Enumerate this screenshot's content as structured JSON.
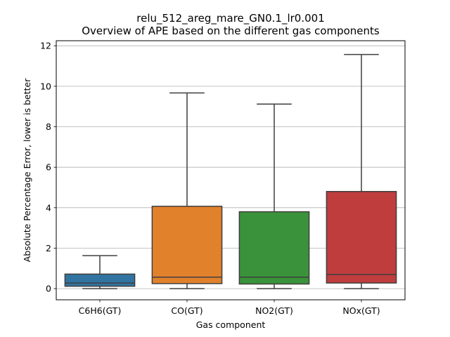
{
  "chart_data": {
    "type": "box",
    "title": "relu_512_areg_mare_GN0.1_lr0.001",
    "subtitle": "Overview of APE based on the different gas components",
    "xlabel": "Gas component",
    "ylabel": "Absolute Percentage Error, lower is better",
    "ylim": [
      -0.55,
      12.25
    ],
    "yticks": [
      0,
      2,
      4,
      6,
      8,
      10,
      12
    ],
    "grid": "y",
    "categories": [
      "C6H6(GT)",
      "CO(GT)",
      "NO2(GT)",
      "NOx(GT)"
    ],
    "boxes": [
      {
        "category": "C6H6(GT)",
        "whisker_low": 0.0,
        "q1": 0.12,
        "median": 0.28,
        "q3": 0.72,
        "whisker_high": 1.63,
        "color": "#3274a1"
      },
      {
        "category": "CO(GT)",
        "whisker_low": 0.0,
        "q1": 0.25,
        "median": 0.57,
        "q3": 4.07,
        "whisker_high": 9.67,
        "color": "#e1812c"
      },
      {
        "category": "NO2(GT)",
        "whisker_low": 0.0,
        "q1": 0.23,
        "median": 0.57,
        "q3": 3.8,
        "whisker_high": 9.12,
        "color": "#3a923a"
      },
      {
        "category": "NOx(GT)",
        "whisker_low": 0.0,
        "q1": 0.28,
        "median": 0.7,
        "q3": 4.8,
        "whisker_high": 11.57,
        "color": "#c03d3e"
      }
    ]
  }
}
